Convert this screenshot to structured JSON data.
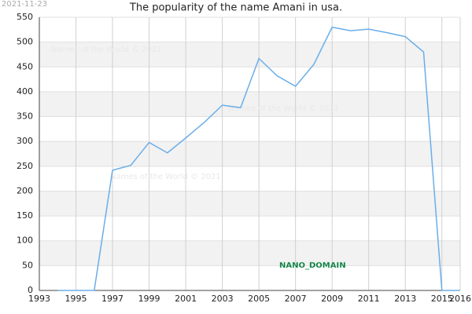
{
  "chart_data": {
    "type": "line",
    "title": "The popularity of the name Amani in usa.",
    "date": "2021-11-23",
    "watermarks": [
      "Names of the World © 2021",
      "Names of the World © 2021",
      "Names of the World © 2021"
    ],
    "domain_label": "NANO_DOMAIN",
    "x": [
      1994,
      1995,
      1996,
      1997,
      1998,
      1999,
      2000,
      2001,
      2002,
      2003,
      2004,
      2005,
      2006,
      2007,
      2008,
      2009,
      2010,
      2011,
      2012,
      2013,
      2014,
      2015,
      2016
    ],
    "series": [
      {
        "name": "Amani",
        "color": "#6aaee8",
        "values": [
          0,
          0,
          0,
          242,
          252,
          298,
          277,
          307,
          338,
          373,
          368,
          467,
          432,
          411,
          455,
          530,
          523,
          526,
          519,
          511,
          480,
          0,
          0
        ]
      }
    ],
    "xlim": [
      1993,
      2016
    ],
    "xticks": [
      1993,
      1995,
      1997,
      1999,
      2001,
      2003,
      2005,
      2007,
      2009,
      2011,
      2013,
      2015,
      2016
    ],
    "ylim": [
      0,
      550
    ],
    "yticks": [
      0,
      50,
      100,
      150,
      200,
      250,
      300,
      350,
      400,
      450,
      500,
      550
    ],
    "grid": true
  }
}
